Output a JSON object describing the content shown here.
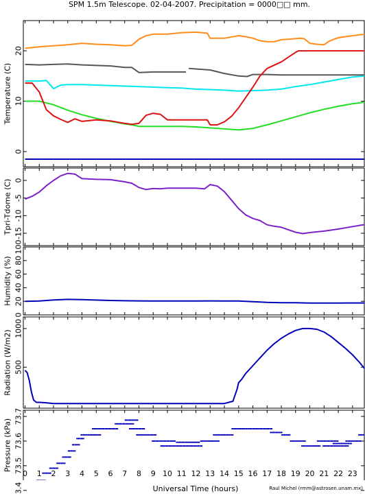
{
  "chart_data": {
    "title": "SPM 1.5m Telescope. 02-04-2007. Precipitation = 0000□□ mm.",
    "xlabel": "Universal Time (hours)",
    "credit": "Raul Michel (rmm@astrosen.unam.mx)",
    "x_ticks": [
      "0",
      "1",
      "2",
      "3",
      "4",
      "5",
      "6",
      "7",
      "8",
      "9",
      "10",
      "11",
      "12",
      "13",
      "14",
      "15",
      "16",
      "17",
      "18",
      "19",
      "20",
      "21",
      "22",
      "23"
    ],
    "xlim": [
      0,
      23.9
    ],
    "panels": [
      {
        "ylabel": "Temperature (C)",
        "ylim": [
          -3,
          26
        ],
        "ticks": [
          {
            "v": 0,
            "t": "0"
          },
          {
            "v": 10,
            "t": "10"
          },
          {
            "v": 20,
            "t": "20"
          }
        ],
        "series": [
          {
            "type": "line",
            "color": "#ff8c1a",
            "x": [
              0,
              1,
              2,
              3,
              4,
              5,
              6,
              7,
              7.5,
              8,
              8.5,
              9,
              10,
              11,
              12,
              12.8,
              13,
              14,
              15,
              15.5,
              16,
              16.5,
              17,
              17.5,
              18,
              18.5,
              19,
              19.3,
              19.6,
              20,
              20.5,
              21,
              21.3,
              21.6,
              22,
              23,
              23.9
            ],
            "y": [
              20.5,
              20.8,
              21,
              21.2,
              21.5,
              21.3,
              21.2,
              21,
              21.1,
              22.3,
              23,
              23.3,
              23.3,
              23.6,
              23.7,
              23.5,
              22.5,
              22.5,
              23,
              22.8,
              22.5,
              22,
              21.8,
              21.8,
              22.2,
              22.3,
              22.4,
              22.5,
              22.4,
              21.5,
              21.3,
              21.2,
              21.8,
              22.2,
              22.6,
              23,
              23.3
            ]
          },
          {
            "type": "line",
            "color": "#555555",
            "x": [
              0,
              1,
              2,
              3,
              4,
              5,
              6,
              7,
              7.5,
              8,
              9,
              10,
              11.3
            ],
            "y": [
              17.3,
              17.2,
              17.3,
              17.4,
              17.2,
              17.1,
              17,
              16.7,
              16.7,
              15.7,
              15.8,
              15.8,
              15.8
            ]
          },
          {
            "type": "line",
            "color": "#555555",
            "x": [
              11.5,
              12,
              13,
              14,
              15,
              15.6,
              16,
              17,
              18,
              19,
              20,
              21,
              22,
              23,
              23.9
            ],
            "y": [
              16.5,
              16.4,
              16.2,
              15.5,
              15,
              14.9,
              15.3,
              15.3,
              15.2,
              15.2,
              15.2,
              15.2,
              15.2,
              15.2,
              15.2
            ]
          },
          {
            "type": "line",
            "color": "#00e5ee",
            "x": [
              0,
              0.5,
              1,
              1.5,
              2,
              2.5,
              3,
              4,
              5,
              6,
              7,
              8,
              9,
              10,
              11,
              12,
              13,
              14,
              15,
              16,
              17,
              18,
              19,
              20,
              21,
              22,
              23,
              23.9
            ],
            "y": [
              14,
              14,
              14,
              14.1,
              12.5,
              13.2,
              13.3,
              13.3,
              13.2,
              13.1,
              13,
              12.9,
              12.8,
              12.7,
              12.6,
              12.4,
              12.3,
              12.2,
              12,
              12.1,
              12.2,
              12.4,
              12.9,
              13.3,
              13.8,
              14.3,
              14.8,
              15
            ]
          },
          {
            "type": "line",
            "color": "#22dd22",
            "x": [
              0,
              1,
              2,
              3,
              4,
              5,
              6,
              7,
              7.5,
              8,
              9,
              10,
              11,
              12,
              13,
              14,
              15,
              16,
              17,
              18,
              19,
              20,
              21,
              22,
              23,
              23.9
            ],
            "y": [
              10,
              10,
              9.3,
              8.2,
              7.3,
              6.6,
              6,
              5.5,
              5.3,
              5,
              5,
              5,
              5,
              4.9,
              4.7,
              4.5,
              4.3,
              4.6,
              5.3,
              6.1,
              6.9,
              7.7,
              8.4,
              9,
              9.5,
              9.8
            ]
          },
          {
            "type": "line",
            "color": "#dd1111",
            "x": [
              0,
              0.5,
              1,
              1.5,
              2,
              2.5,
              3,
              3.5,
              4,
              5,
              6,
              7,
              7.5,
              8,
              8.5,
              9,
              9.5,
              10,
              11,
              12,
              12.8,
              13,
              13.5,
              14,
              14.5,
              15,
              16,
              16.5,
              17,
              18,
              19,
              19.2,
              20,
              23.9
            ],
            "y": [
              13.6,
              13.6,
              11.8,
              8.3,
              7.1,
              6.4,
              5.8,
              6.5,
              6,
              6.3,
              6.1,
              5.6,
              5.4,
              5.6,
              7.2,
              7.6,
              7.4,
              6.3,
              6.3,
              6.3,
              6.3,
              5.3,
              5.3,
              5.9,
              7,
              8.7,
              12.8,
              15,
              16.5,
              17.8,
              19.7,
              20,
              20,
              20
            ]
          },
          {
            "type": "line",
            "color": "#0000bb",
            "x": [
              0,
              23.9
            ],
            "y": [
              -1.5,
              -1.5
            ]
          }
        ]
      },
      {
        "ylabel": "Tpri-Tdome (C)",
        "ylim": [
          -18.5,
          3.5
        ],
        "ticks": [
          {
            "v": 0,
            "t": "0"
          },
          {
            "v": -5,
            "t": "-5"
          },
          {
            "v": -10,
            "t": "-10"
          },
          {
            "v": -15,
            "t": "-15"
          }
        ],
        "series": [
          {
            "type": "line",
            "color": "#7b1fc8",
            "x": [
              0,
              0.5,
              1,
              1.5,
              2,
              2.5,
              3,
              3.5,
              4,
              5,
              6,
              7,
              7.5,
              8,
              8.5,
              9,
              9.5,
              10,
              11,
              12,
              12.6,
              13,
              13.5,
              14,
              14.5,
              15,
              15.5,
              16,
              16.5,
              17,
              17.5,
              18,
              18.5,
              19,
              19.5,
              20,
              21,
              22,
              23,
              23.9
            ],
            "y": [
              -5.3,
              -4.5,
              -3.3,
              -1.5,
              0,
              1.3,
              2,
              1.8,
              0.5,
              0.3,
              0.2,
              -0.4,
              -0.8,
              -2,
              -2.6,
              -2.3,
              -2.4,
              -2.2,
              -2.2,
              -2.2,
              -2.4,
              -1.2,
              -1.6,
              -3.2,
              -5.6,
              -8,
              -9.8,
              -10.8,
              -11.4,
              -12.6,
              -13,
              -13.3,
              -14,
              -14.7,
              -15.1,
              -14.8,
              -14.4,
              -13.8,
              -13.1,
              -12.5
            ]
          }
        ]
      },
      {
        "ylabel": "Humidity (%)",
        "ylim": [
          0,
          100
        ],
        "ticks": [
          {
            "v": 0,
            "t": "0"
          },
          {
            "v": 20,
            "t": "20"
          },
          {
            "v": 40,
            "t": "40"
          },
          {
            "v": 60,
            "t": "60"
          },
          {
            "v": 80,
            "t": "80"
          },
          {
            "v": 100,
            "t": "100"
          }
        ],
        "series": [
          {
            "type": "line",
            "color": "#0000bb",
            "x": [
              0,
              1,
              2,
              3,
              4,
              5,
              6,
              7,
              8,
              9,
              10,
              11,
              12,
              13,
              14,
              15,
              16,
              17,
              18,
              19,
              20,
              21,
              22,
              23,
              23.9
            ],
            "y": [
              20,
              20.5,
              22,
              22.8,
              22.5,
              21.8,
              21.2,
              20.8,
              20.6,
              20.5,
              20.4,
              20.4,
              20.5,
              20.6,
              20.4,
              20.5,
              19.5,
              18.4,
              18,
              18,
              17.5,
              17.4,
              17.5,
              17.6,
              17.6
            ]
          }
        ]
      },
      {
        "ylabel": "Radiation (W/m2)",
        "ylim": [
          -30,
          1150
        ],
        "ticks": [
          {
            "v": 500,
            "t": "500"
          },
          {
            "v": 1000,
            "t": "1000"
          }
        ],
        "series": [
          {
            "type": "line",
            "color": "#0000bb",
            "x": [
              0,
              0.15,
              0.3,
              0.45,
              0.6,
              0.8,
              1,
              1.5,
              2,
              3,
              5,
              7,
              9,
              11,
              13,
              14,
              14.3,
              14.6,
              14.9,
              15,
              15.2,
              15.5,
              16,
              16.5,
              17,
              17.5,
              18,
              18.5,
              19,
              19.5,
              20,
              20.5,
              21,
              21.5,
              22,
              22.5,
              23,
              23.5,
              23.9
            ],
            "y": [
              460,
              430,
              330,
              180,
              75,
              45,
              45,
              40,
              30,
              30,
              30,
              30,
              30,
              30,
              30,
              30,
              45,
              60,
              220,
              300,
              340,
              420,
              520,
              620,
              720,
              805,
              875,
              930,
              975,
              1000,
              1000,
              990,
              955,
              895,
              820,
              745,
              660,
              560,
              470
            ]
          }
        ]
      },
      {
        "ylabel": "Pressure (kPa)",
        "ylim": [
          73.355,
          73.725
        ],
        "ticks": [
          {
            "v": 73.4,
            "t": "73.4"
          },
          {
            "v": 73.5,
            "t": "73.5"
          },
          {
            "v": 73.6,
            "t": "73.6"
          },
          {
            "v": 73.7,
            "t": "73.7"
          }
        ],
        "series": [
          {
            "type": "scatter",
            "color": "#0000bb",
            "segments": [
              [
                0.05,
                0.45,
                73.38
              ],
              [
                0.35,
                0.9,
                73.41
              ],
              [
                0.8,
                1.4,
                73.44
              ],
              [
                1.2,
                1.8,
                73.47
              ],
              [
                1.7,
                2.3,
                73.49
              ],
              [
                2.2,
                2.8,
                73.51
              ],
              [
                2.6,
                3.2,
                73.535
              ],
              [
                3.0,
                3.5,
                73.56
              ],
              [
                3.3,
                3.8,
                73.585
              ],
              [
                3.6,
                4.1,
                73.61
              ],
              [
                3.9,
                5.3,
                73.625
              ],
              [
                4.7,
                6.5,
                73.65
              ],
              [
                6.3,
                7.6,
                73.67
              ],
              [
                7.0,
                7.9,
                73.685
              ],
              [
                7.3,
                8.4,
                73.65
              ],
              [
                7.8,
                9.2,
                73.625
              ],
              [
                8.9,
                10.5,
                73.6
              ],
              [
                9.5,
                12.4,
                73.58
              ],
              [
                10.6,
                12.2,
                73.595
              ],
              [
                12.3,
                13.6,
                73.6
              ],
              [
                13.2,
                14.6,
                73.625
              ],
              [
                14.5,
                17.3,
                73.65
              ],
              [
                17.2,
                18.0,
                73.635
              ],
              [
                18.0,
                18.6,
                73.625
              ],
              [
                18.6,
                19.7,
                73.6
              ],
              [
                19.4,
                20.7,
                73.58
              ],
              [
                20.5,
                22.0,
                73.6
              ],
              [
                20.9,
                22.7,
                73.58
              ],
              [
                21.6,
                22.9,
                73.59
              ],
              [
                22.5,
                23.6,
                73.6
              ],
              [
                23.4,
                23.9,
                73.625
              ]
            ]
          }
        ]
      }
    ]
  }
}
